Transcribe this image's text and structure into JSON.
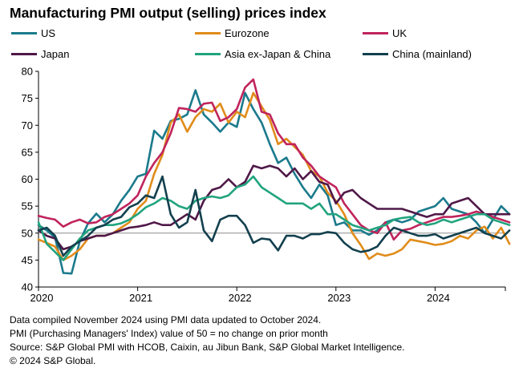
{
  "chart_data": {
    "type": "line",
    "title": "Manufacturing PMI output (selling) prices index",
    "xlabel": "",
    "ylabel": "",
    "ylim": [
      40,
      80
    ],
    "yticks": [
      40,
      45,
      50,
      55,
      60,
      65,
      70,
      75,
      80
    ],
    "xticks": [
      "2020",
      "2021",
      "2022",
      "2023",
      "2024"
    ],
    "reference_line": 50,
    "legend_position": "top, 3 columns",
    "grid": false,
    "x": [
      "2020-01",
      "2020-02",
      "2020-03",
      "2020-04",
      "2020-05",
      "2020-06",
      "2020-07",
      "2020-08",
      "2020-09",
      "2020-10",
      "2020-11",
      "2020-12",
      "2021-01",
      "2021-02",
      "2021-03",
      "2021-04",
      "2021-05",
      "2021-06",
      "2021-07",
      "2021-08",
      "2021-09",
      "2021-10",
      "2021-11",
      "2021-12",
      "2022-01",
      "2022-02",
      "2022-03",
      "2022-04",
      "2022-05",
      "2022-06",
      "2022-07",
      "2022-08",
      "2022-09",
      "2022-10",
      "2022-11",
      "2022-12",
      "2023-01",
      "2023-02",
      "2023-03",
      "2023-04",
      "2023-05",
      "2023-06",
      "2023-07",
      "2023-08",
      "2023-09",
      "2023-10",
      "2023-11",
      "2023-12",
      "2024-01",
      "2024-02",
      "2024-03",
      "2024-04",
      "2024-05",
      "2024-06",
      "2024-07",
      "2024-08",
      "2024-09",
      "2024-10"
    ],
    "series": [
      {
        "name": "US",
        "color": "#1b7a8c",
        "values": [
          51.5,
          50.5,
          49.2,
          42.6,
          42.5,
          48.5,
          51.8,
          53.6,
          52.0,
          53.5,
          56.0,
          58.0,
          60.5,
          61.0,
          69.0,
          67.5,
          70.8,
          71.2,
          72.0,
          76.5,
          72.0,
          70.5,
          68.8,
          70.5,
          69.7,
          76.0,
          73.0,
          70.5,
          66.5,
          63.0,
          64.0,
          61.0,
          58.5,
          56.5,
          59.0,
          57.0,
          51.5,
          52.0,
          50.5,
          50.5,
          49.7,
          50.5,
          52.0,
          52.5,
          52.0,
          52.5,
          54.0,
          54.5,
          55.0,
          56.5,
          54.5,
          54.0,
          53.5,
          52.0,
          50.0,
          52.5,
          55.0,
          53.5
        ]
      },
      {
        "name": "Eurozone",
        "color": "#e08c1a",
        "values": [
          48.8,
          48.2,
          47.5,
          45.0,
          45.8,
          47.0,
          49.0,
          49.5,
          49.5,
          50.0,
          51.0,
          52.0,
          54.5,
          56.0,
          61.0,
          64.5,
          70.5,
          72.0,
          68.8,
          71.5,
          73.0,
          72.5,
          74.0,
          70.5,
          72.5,
          71.5,
          76.0,
          73.5,
          71.0,
          66.5,
          67.5,
          66.0,
          64.5,
          61.5,
          60.5,
          57.5,
          56.0,
          53.5,
          50.0,
          47.8,
          45.2,
          46.2,
          45.8,
          46.2,
          47.0,
          48.8,
          48.5,
          48.2,
          47.8,
          48.0,
          48.5,
          49.5,
          49.0,
          50.5,
          51.2,
          49.0,
          51.0,
          48.0
        ]
      },
      {
        "name": "UK",
        "color": "#c0245c",
        "values": [
          53.2,
          52.8,
          52.5,
          51.2,
          52.0,
          52.5,
          51.8,
          52.0,
          53.0,
          53.5,
          54.5,
          55.5,
          57.0,
          60.5,
          63.0,
          65.0,
          68.5,
          73.2,
          73.0,
          72.5,
          74.0,
          74.2,
          70.8,
          71.5,
          73.0,
          77.0,
          78.5,
          72.5,
          72.0,
          68.5,
          66.5,
          66.5,
          64.0,
          62.5,
          60.5,
          59.5,
          58.5,
          55.5,
          53.5,
          51.5,
          50.5,
          50.0,
          52.0,
          48.8,
          50.5,
          50.8,
          51.5,
          52.0,
          52.5,
          53.0,
          53.0,
          53.2,
          53.5,
          54.0,
          53.5,
          53.0,
          52.5,
          52.0
        ]
      },
      {
        "name": "Japan",
        "color": "#4f1848",
        "values": [
          50.5,
          49.5,
          49.0,
          47.0,
          47.5,
          48.5,
          49.0,
          49.5,
          49.5,
          50.0,
          50.5,
          51.0,
          51.2,
          51.5,
          52.0,
          51.5,
          51.5,
          52.5,
          53.5,
          52.5,
          56.0,
          58.0,
          58.5,
          60.0,
          58.5,
          59.5,
          62.5,
          62.0,
          62.5,
          62.0,
          60.5,
          62.0,
          60.0,
          61.5,
          59.5,
          59.0,
          55.5,
          57.5,
          58.0,
          56.5,
          55.5,
          54.5,
          54.5,
          54.5,
          54.5,
          54.0,
          53.5,
          53.0,
          53.5,
          53.5,
          55.5,
          56.0,
          56.5,
          55.0,
          53.5,
          53.5,
          53.5,
          53.5
        ]
      },
      {
        "name": "Asia ex-Japan & China",
        "color": "#21a47e",
        "values": [
          52.0,
          48.0,
          46.5,
          45.0,
          47.0,
          49.0,
          50.5,
          51.0,
          51.5,
          51.5,
          51.8,
          52.5,
          53.5,
          54.8,
          55.5,
          56.5,
          56.0,
          55.0,
          54.5,
          56.0,
          56.5,
          56.8,
          56.5,
          57.0,
          58.5,
          59.0,
          60.5,
          58.5,
          57.5,
          56.5,
          55.5,
          55.5,
          55.5,
          54.5,
          55.5,
          53.5,
          53.5,
          52.5,
          51.5,
          51.0,
          50.5,
          51.0,
          51.5,
          52.5,
          52.8,
          53.0,
          52.0,
          51.5,
          51.8,
          52.5,
          52.0,
          52.5,
          53.0,
          53.5,
          53.5,
          52.5,
          52.0,
          51.5
        ]
      },
      {
        "name": "China (mainland)",
        "color": "#13404e",
        "values": [
          50.5,
          51.0,
          49.5,
          45.8,
          47.5,
          48.5,
          49.5,
          51.0,
          51.5,
          52.5,
          53.0,
          54.8,
          55.5,
          57.0,
          56.5,
          60.5,
          53.5,
          51.0,
          52.0,
          58.0,
          50.5,
          48.5,
          52.5,
          53.2,
          53.2,
          51.5,
          48.2,
          49.0,
          48.8,
          46.8,
          49.5,
          49.5,
          49.0,
          49.8,
          49.8,
          50.2,
          50.0,
          48.2,
          47.0,
          46.5,
          46.8,
          47.5,
          49.5,
          51.0,
          50.5,
          50.0,
          49.5,
          49.5,
          49.8,
          49.0,
          49.5,
          50.0,
          50.5,
          51.0,
          50.0,
          49.5,
          49.0,
          50.5
        ]
      }
    ]
  },
  "footnotes": [
    "Data compiled November 2024 using PMI data updated to October 2024.",
    "PMI (Purchasing Managers' Index) value of 50 = no change on prior month",
    "Source: S&P Global PMI with HCOB, Caixin, au Jibun Bank, S&P Global Market Intelligence.",
    "© 2024 S&P Global."
  ]
}
